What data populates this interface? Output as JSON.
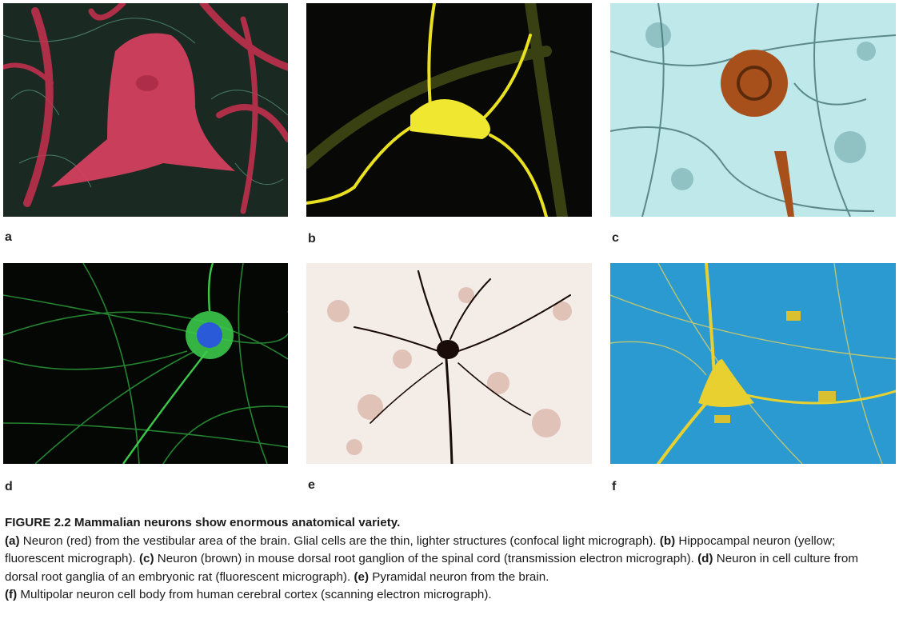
{
  "panels": [
    {
      "label": "a"
    },
    {
      "label": "b"
    },
    {
      "label": "c"
    },
    {
      "label": "d"
    },
    {
      "label": "e"
    },
    {
      "label": "f"
    }
  ],
  "caption": {
    "title": "FIGURE 2.2  Mammalian neurons show enormous anatomical variety.",
    "parts": [
      {
        "label": "(a)",
        "text": " Neuron (red) from the vestibular area of the brain. Glial cells are the thin, lighter structures (confocal light micrograph). "
      },
      {
        "label": "(b)",
        "text": " Hippocampal neuron (yellow; fluorescent micrograph). "
      },
      {
        "label": "(c)",
        "text": " Neuron (brown) in mouse dorsal root ganglion of the spinal cord (transmission electron micrograph). "
      },
      {
        "label": "(d)",
        "text": " Neuron in cell culture from dorsal root ganglia of an embryonic rat (fluorescent micrograph). "
      },
      {
        "label": "(e)",
        "text": " Pyramidal neuron from the brain. "
      },
      {
        "label": "(f)",
        "text": " Multipolar neuron cell body from human cerebral cortex (scanning electron micrograph)."
      }
    ]
  },
  "colors": {
    "a_bg": "#1a2a22",
    "a_cell": "#d8405f",
    "b_bg": "#080806",
    "b_cell": "#e8e020",
    "c_bg": "#bfe8ea",
    "c_cell": "#a8501c",
    "d_bg": "#050705",
    "d_cell": "#3cc84a",
    "d_nucleus": "#2a5ad8",
    "e_bg": "#f4ece6",
    "e_cell": "#1a0c08",
    "f_bg": "#2a9ad0",
    "f_cell": "#e8d030"
  }
}
